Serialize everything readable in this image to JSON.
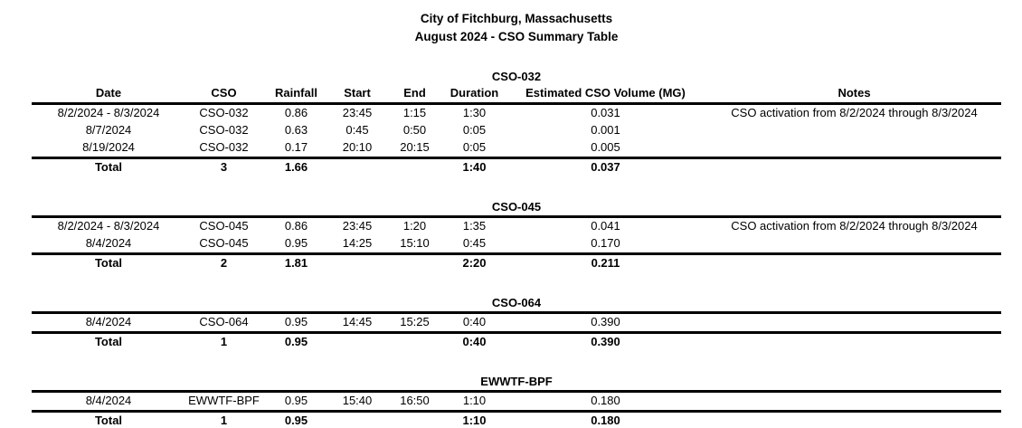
{
  "document": {
    "title": "City of Fitchburg, Massachusetts",
    "subtitle": "August 2024 - CSO Summary Table"
  },
  "table": {
    "columns": [
      "Date",
      "CSO",
      "Rainfall",
      "Start",
      "End",
      "Duration",
      "Estimated CSO Volume (MG)",
      "Notes"
    ],
    "sections": [
      {
        "label": "CSO-032",
        "show_header": true,
        "rows": [
          [
            "8/2/2024 - 8/3/2024",
            "CSO-032",
            "0.86",
            "23:45",
            "1:15",
            "1:30",
            "0.031",
            "CSO activation from 8/2/2024 through 8/3/2024"
          ],
          [
            "8/7/2024",
            "CSO-032",
            "0.63",
            "0:45",
            "0:50",
            "0:05",
            "0.001",
            ""
          ],
          [
            "8/19/2024",
            "CSO-032",
            "0.17",
            "20:10",
            "20:15",
            "0:05",
            "0.005",
            ""
          ]
        ],
        "total": [
          "Total",
          "3",
          "1.66",
          "",
          "",
          "1:40",
          "0.037",
          ""
        ]
      },
      {
        "label": "CSO-045",
        "show_header": false,
        "rows": [
          [
            "8/2/2024 - 8/3/2024",
            "CSO-045",
            "0.86",
            "23:45",
            "1:20",
            "1:35",
            "0.041",
            "CSO activation from 8/2/2024 through 8/3/2024"
          ],
          [
            "8/4/2024",
            "CSO-045",
            "0.95",
            "14:25",
            "15:10",
            "0:45",
            "0.170",
            ""
          ]
        ],
        "total": [
          "Total",
          "2",
          "1.81",
          "",
          "",
          "2:20",
          "0.211",
          ""
        ]
      },
      {
        "label": "CSO-064",
        "show_header": false,
        "rows": [
          [
            "8/4/2024",
            "CSO-064",
            "0.95",
            "14:45",
            "15:25",
            "0:40",
            "0.390",
            ""
          ]
        ],
        "total": [
          "Total",
          "1",
          "0.95",
          "",
          "",
          "0:40",
          "0.390",
          ""
        ]
      },
      {
        "label": "EWWTF-BPF",
        "show_header": false,
        "rows": [
          [
            "8/4/2024",
            "EWWTF-BPF",
            "0.95",
            "15:40",
            "16:50",
            "1:10",
            "0.180",
            ""
          ]
        ],
        "total": [
          "Total",
          "1",
          "0.95",
          "",
          "",
          "1:10",
          "0.180",
          ""
        ]
      }
    ]
  },
  "colors": {
    "text": "#000000",
    "rule": "#000000",
    "background": "#ffffff"
  }
}
